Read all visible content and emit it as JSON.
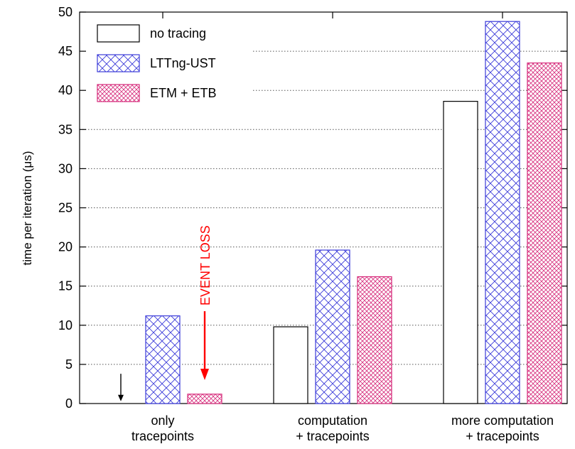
{
  "chart_data": {
    "type": "bar",
    "title": "",
    "xlabel": "",
    "ylabel": "time per iteration (μs)",
    "ylim": [
      0,
      50
    ],
    "yticks": [
      0,
      5,
      10,
      15,
      20,
      25,
      30,
      35,
      40,
      45,
      50
    ],
    "grid": true,
    "legend_position": "top-left",
    "categories": [
      [
        "only",
        "tracepoints"
      ],
      [
        "computation",
        "+ tracepoints"
      ],
      [
        "more computation",
        "+ tracepoints"
      ]
    ],
    "series": [
      {
        "name": "no tracing",
        "values": [
          0,
          9.8,
          38.6
        ],
        "fill": "#ffffff",
        "pattern": "none",
        "pattern_color": "#000000"
      },
      {
        "name": "LTTng-UST",
        "values": [
          11.2,
          19.6,
          48.8
        ],
        "fill": "#ffffff",
        "pattern": "crosshatch",
        "pattern_color": "#3b3bd9"
      },
      {
        "name": "ETM + ETB",
        "values": [
          1.2,
          16.2,
          43.5
        ],
        "fill": "#ffffff",
        "pattern": "crosshatch-dense",
        "pattern_color": "#d6297a"
      }
    ],
    "annotations": [
      {
        "text": "EVENT LOSS",
        "color": "#ff0000",
        "orientation": "vertical",
        "category_index": 0,
        "series_index": 2,
        "arrow_from_value": 11.8,
        "arrow_to_value": 3.0
      },
      {
        "text": "",
        "color": "#000000",
        "category_index": 0,
        "series_index": 0,
        "arrow_from_value": 3.8,
        "arrow_to_value": 0.3
      }
    ]
  }
}
